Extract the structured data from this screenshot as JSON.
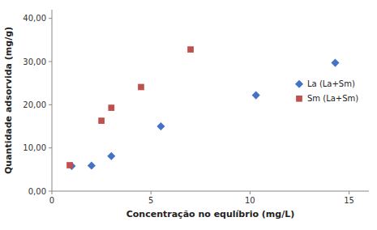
{
  "chart_data": {
    "type": "scatter",
    "xlabel": "Concentração no equlíbrio (mg/L)",
    "ylabel": "Quantidade adsorvida (mg/g)",
    "series": [
      {
        "name": "La (La+Sm)",
        "color": "#4472C4",
        "marker": "diamond",
        "x": [
          1.0,
          2.0,
          3.0,
          5.5,
          10.3,
          14.3
        ],
        "values": [
          5.8,
          5.9,
          8.1,
          15.0,
          22.2,
          29.7
        ]
      },
      {
        "name": "Sm (La+Sm)",
        "color": "#C0504D",
        "marker": "square",
        "x": [
          0.9,
          2.5,
          3.0,
          4.5,
          7.0
        ],
        "values": [
          6.0,
          16.3,
          19.3,
          24.1,
          32.8
        ]
      }
    ],
    "xlim": [
      0,
      16
    ],
    "ylim": [
      0,
      42
    ],
    "xticks": [
      0,
      5,
      10,
      15
    ],
    "yticks": [
      {
        "value": 0.0,
        "label": "0,00"
      },
      {
        "value": 10.0,
        "label": "10,00"
      },
      {
        "value": 20.0,
        "label": "20,00"
      },
      {
        "value": 30.0,
        "label": "30,00"
      },
      {
        "value": 40.0,
        "label": "40,00"
      }
    ],
    "grid": false,
    "legend": "right"
  }
}
